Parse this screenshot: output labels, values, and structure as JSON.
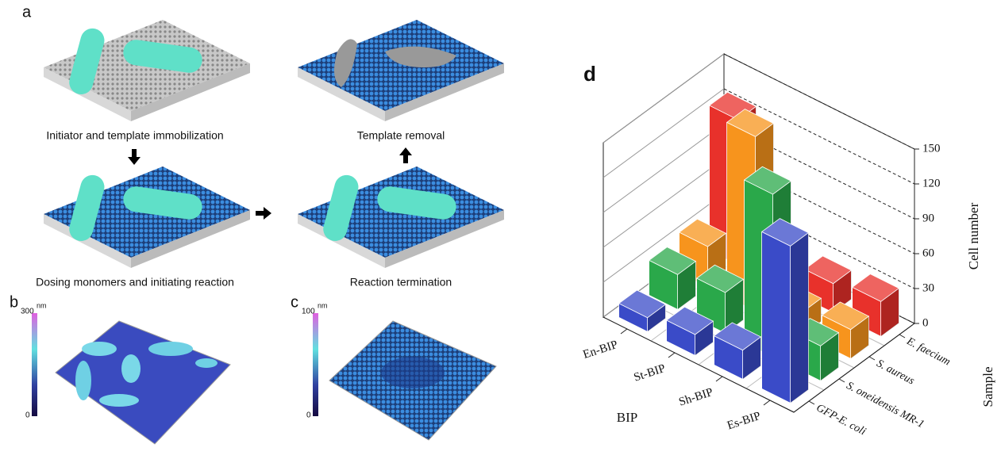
{
  "panels": {
    "a": {
      "label": "a",
      "steps": [
        "Initiator and template immobilization",
        "Template removal",
        "Dosing monomers and initiating reaction",
        "Reaction termination"
      ]
    },
    "b": {
      "label": "b",
      "unit": "nm",
      "scale_max": "300",
      "scale_min": "0"
    },
    "c": {
      "label": "c",
      "unit": "nm",
      "scale_max": "100",
      "scale_min": "0"
    }
  },
  "chart_data": {
    "type": "bar3d",
    "label": "d",
    "categories": [
      "En-BIP",
      "St-BIP",
      "Sh-BIP",
      "Es-BIP"
    ],
    "x_label": "BIP",
    "series_label": "Sample",
    "z_label": "Cell number",
    "series": [
      {
        "name": "E. faecium",
        "color": "#e8312b",
        "values": [
          125,
          10,
          25,
          30
        ]
      },
      {
        "name": "S. aureus",
        "color": "#f7941d",
        "values": [
          35,
          150,
          20,
          25
        ]
      },
      {
        "name": "S. oneidensis MR-1",
        "color": "#2aa84a",
        "values": [
          30,
          35,
          140,
          30
        ]
      },
      {
        "name": "GFP-E. coli",
        "color": "#3a4bc8",
        "values": [
          12,
          18,
          25,
          135
        ]
      }
    ],
    "zlim": [
      0,
      150
    ],
    "zticks": [
      0,
      30,
      60,
      90,
      120,
      150
    ],
    "grid": true
  }
}
